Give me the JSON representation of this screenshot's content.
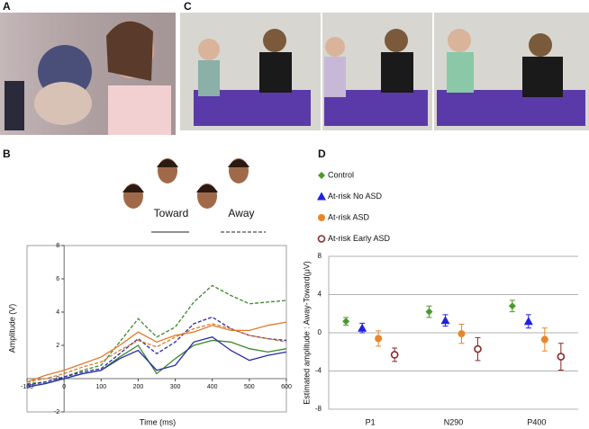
{
  "panels": [
    "A",
    "B",
    "C",
    "D"
  ],
  "chart_data": [
    {
      "type": "line",
      "x_label": "Time (ms)",
      "y_label": "Amplitude (V)",
      "x": [
        -100,
        -50,
        0,
        50,
        100,
        150,
        200,
        250,
        300,
        350,
        400,
        450,
        500,
        550,
        600
      ],
      "xlim": [
        -100,
        600
      ],
      "xticks": [
        -100,
        0,
        100,
        200,
        300,
        400,
        500,
        600
      ],
      "ylim": [
        -2,
        8
      ],
      "yticks": [
        -2,
        0,
        2,
        4,
        6,
        8
      ],
      "line_styles": [
        {
          "label": "Toward",
          "dash": "solid"
        },
        {
          "label": "Away",
          "dash": "dashed"
        }
      ],
      "series": [
        {
          "color": "#3a8a2a",
          "dash": "dashed",
          "values": [
            -0.3,
            -0.2,
            0.1,
            0.5,
            0.8,
            2.2,
            3.6,
            2.5,
            3.1,
            4.6,
            5.6,
            5.0,
            4.5,
            4.6,
            4.7
          ]
        },
        {
          "color": "#2a2aa8",
          "dash": "dashed",
          "values": [
            -0.4,
            -0.2,
            0.1,
            0.4,
            0.6,
            1.5,
            2.4,
            1.5,
            2.2,
            3.3,
            3.7,
            3.0,
            2.6,
            2.4,
            2.3
          ]
        },
        {
          "color": "#e07a2a",
          "dash": "dashed",
          "values": [
            -0.2,
            0,
            0.3,
            0.7,
            1.0,
            1.7,
            2.3,
            1.9,
            2.5,
            3.0,
            3.3,
            3.0,
            2.6,
            2.4,
            2.2
          ]
        },
        {
          "color": "#3a8a2a",
          "dash": "solid",
          "values": [
            -0.5,
            -0.3,
            0,
            0.3,
            0.5,
            1.3,
            2.0,
            0.3,
            1.2,
            2.0,
            2.3,
            2.2,
            1.8,
            1.6,
            1.8
          ]
        },
        {
          "color": "#2a2aa8",
          "dash": "solid",
          "values": [
            -0.5,
            -0.3,
            0,
            0.3,
            0.5,
            1.2,
            1.7,
            0.5,
            0.8,
            2.2,
            2.5,
            1.7,
            1.1,
            1.4,
            1.6
          ]
        },
        {
          "color": "#e07a2a",
          "dash": "solid",
          "values": [
            -0.2,
            0.2,
            0.5,
            0.9,
            1.3,
            2.0,
            2.8,
            2.2,
            2.6,
            2.8,
            3.2,
            2.9,
            2.9,
            3.2,
            3.4
          ]
        }
      ]
    },
    {
      "type": "scatter",
      "y_label": "Estimated amplitude : Away-Toward(μV)",
      "categories": [
        "P1",
        "N290",
        "P400"
      ],
      "ylim": [
        -8,
        8
      ],
      "yticks": [
        -8,
        -4,
        0,
        4,
        8
      ],
      "grid": true,
      "series": [
        {
          "name": "Control",
          "color": "#4a9a2a",
          "marker": "diamond",
          "values": [
            1.2,
            2.2,
            2.8
          ],
          "errors": [
            0.4,
            0.6,
            0.6
          ]
        },
        {
          "name": "At-risk No ASD",
          "color": "#2020e0",
          "marker": "triangle",
          "values": [
            0.5,
            1.3,
            1.2
          ],
          "errors": [
            0.5,
            0.6,
            0.7
          ]
        },
        {
          "name": "At-risk ASD",
          "color": "#e8862a",
          "marker": "circle",
          "values": [
            -0.6,
            -0.1,
            -0.7
          ],
          "errors": [
            0.8,
            1.0,
            1.2
          ]
        },
        {
          "name": "At-risk Early ASD",
          "color": "#8a2a2a",
          "marker": "open-circle",
          "values": [
            -2.3,
            -1.7,
            -2.5
          ],
          "errors": [
            0.7,
            1.2,
            1.4
          ]
        }
      ]
    }
  ]
}
